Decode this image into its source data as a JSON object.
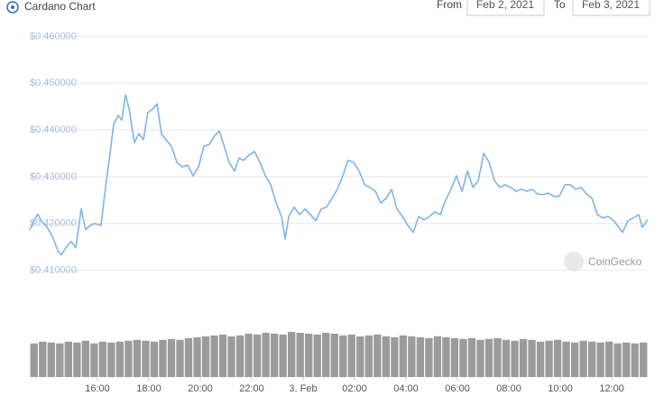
{
  "header": {
    "title": "Cardano Chart",
    "from_label": "From",
    "from_date": "Feb 2, 2021",
    "to_label": "To",
    "to_date": "Feb 3, 2021"
  },
  "watermark": "CoinGecko",
  "chart_data": {
    "type": "line",
    "x": [
      13.37,
      13.54,
      13.68,
      13.82,
      14.04,
      14.25,
      14.46,
      14.6,
      14.77,
      14.98,
      15.16,
      15.37,
      15.54,
      15.72,
      15.89,
      16.14,
      16.35,
      16.46,
      16.63,
      16.81,
      16.95,
      17.09,
      17.23,
      17.44,
      17.61,
      17.79,
      17.96,
      18.18,
      18.32,
      18.49,
      18.67,
      18.88,
      19.09,
      19.3,
      19.51,
      19.72,
      19.93,
      20.14,
      20.35,
      20.56,
      20.74,
      20.91,
      21.12,
      21.33,
      21.51,
      21.68,
      21.89,
      22.11,
      22.32,
      22.53,
      22.74,
      22.95,
      23.16,
      23.3,
      23.44,
      23.65,
      23.86,
      24.07,
      24.28,
      24.49,
      24.7,
      24.91,
      25.12,
      25.33,
      25.54,
      25.75,
      25.96,
      26.18,
      26.39,
      26.6,
      26.81,
      27.02,
      27.23,
      27.44,
      27.65,
      27.86,
      28.07,
      28.28,
      28.49,
      28.7,
      28.91,
      29.12,
      29.33,
      29.54,
      29.75,
      29.96,
      30.18,
      30.39,
      30.6,
      30.81,
      31.02,
      31.23,
      31.44,
      31.65,
      31.86,
      32.07,
      32.28,
      32.49,
      32.7,
      32.91,
      33.12,
      33.33,
      33.54,
      33.75,
      33.96,
      34.18,
      34.39,
      34.6,
      34.81,
      35.02,
      35.23,
      35.44,
      35.65,
      35.86,
      36.07,
      36.28,
      36.42,
      36.63,
      36.84,
      37.05,
      37.19,
      37.4
    ],
    "series": [
      {
        "color": "#7fb5e6",
        "values": [
          0.4186,
          0.4206,
          0.422,
          0.4206,
          0.4192,
          0.4173,
          0.4142,
          0.4133,
          0.4148,
          0.4162,
          0.4148,
          0.4231,
          0.4187,
          0.4196,
          0.42,
          0.4196,
          0.4292,
          0.4335,
          0.4412,
          0.4431,
          0.4421,
          0.4475,
          0.4446,
          0.4373,
          0.4392,
          0.4379,
          0.4437,
          0.4446,
          0.4456,
          0.4392,
          0.4379,
          0.4365,
          0.4331,
          0.4321,
          0.4325,
          0.4302,
          0.4321,
          0.4365,
          0.4369,
          0.4388,
          0.4398,
          0.4369,
          0.4331,
          0.4312,
          0.434,
          0.4335,
          0.4346,
          0.4354,
          0.4331,
          0.4302,
          0.4283,
          0.4244,
          0.4215,
          0.4167,
          0.4215,
          0.4235,
          0.4219,
          0.4231,
          0.4219,
          0.4206,
          0.4231,
          0.4235,
          0.4254,
          0.4273,
          0.4302,
          0.4335,
          0.4331,
          0.4312,
          0.4283,
          0.4277,
          0.4269,
          0.4244,
          0.4254,
          0.4273,
          0.4231,
          0.4215,
          0.4196,
          0.4181,
          0.4215,
          0.4208,
          0.4215,
          0.4225,
          0.4219,
          0.425,
          0.4273,
          0.4302,
          0.4269,
          0.4312,
          0.4277,
          0.4292,
          0.435,
          0.4331,
          0.4292,
          0.4277,
          0.4283,
          0.4277,
          0.4269,
          0.4273,
          0.4269,
          0.4273,
          0.4263,
          0.4262,
          0.4265,
          0.4258,
          0.4258,
          0.4283,
          0.4283,
          0.4273,
          0.4277,
          0.4263,
          0.4254,
          0.4219,
          0.4212,
          0.4215,
          0.4206,
          0.4192,
          0.4181,
          0.4206,
          0.4212,
          0.4219,
          0.4192,
          0.4208
        ]
      }
    ],
    "xlim": [
      13.37,
      37.4
    ],
    "xticks": [
      {
        "value": 16,
        "label": "16:00"
      },
      {
        "value": 18,
        "label": "18:00"
      },
      {
        "value": 20,
        "label": "20:00"
      },
      {
        "value": 22,
        "label": "22:00"
      },
      {
        "value": 24,
        "label": "3. Feb"
      },
      {
        "value": 26,
        "label": "02:00"
      },
      {
        "value": 28,
        "label": "04:00"
      },
      {
        "value": 30,
        "label": "06:00"
      },
      {
        "value": 32,
        "label": "08:00"
      },
      {
        "value": 34,
        "label": "10:00"
      },
      {
        "value": 36,
        "label": "12:00"
      }
    ],
    "ylim": [
      0.408,
      0.462
    ],
    "yticks": [
      {
        "value": 0.41,
        "label": "$0.410000"
      },
      {
        "value": 0.42,
        "label": "$0.420000"
      },
      {
        "value": 0.43,
        "label": "$0.430000"
      },
      {
        "value": 0.44,
        "label": "$0.440000"
      },
      {
        "value": 0.45,
        "label": "$0.450000"
      },
      {
        "value": 0.46,
        "label": "$0.460000"
      }
    ],
    "grid": true,
    "volume": {
      "color": "#9b9b9b",
      "ylim": [
        0,
        55
      ],
      "values": [
        38,
        40,
        39,
        38,
        40,
        39,
        41,
        38,
        40,
        39,
        40,
        41,
        42,
        41,
        40,
        42,
        43,
        42,
        44,
        45,
        46,
        47,
        48,
        46,
        47,
        49,
        48,
        50,
        49,
        48,
        51,
        50,
        49,
        48,
        50,
        49,
        47,
        48,
        46,
        47,
        48,
        46,
        45,
        47,
        46,
        45,
        44,
        46,
        45,
        44,
        43,
        44,
        42,
        43,
        44,
        42,
        41,
        43,
        42,
        40,
        41,
        42,
        40,
        39,
        41,
        40,
        39,
        40,
        38,
        39,
        38,
        39
      ]
    }
  }
}
